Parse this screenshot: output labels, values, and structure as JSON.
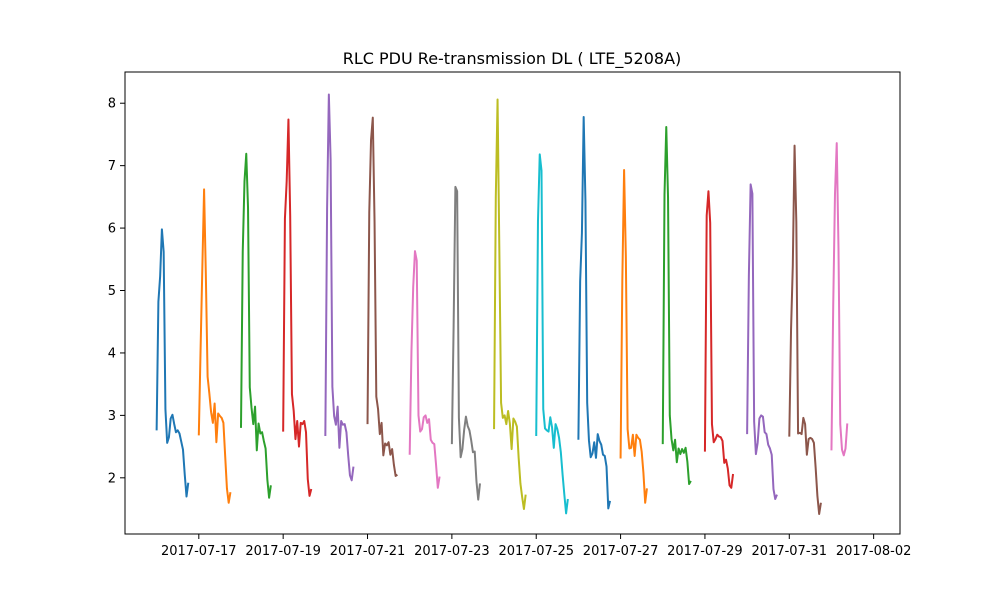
{
  "chart_data": {
    "type": "line",
    "title": "RLC PDU Re-transmission DL ( LTE_5208A)",
    "xlabel": "",
    "ylabel": "",
    "x_ticks": [
      "2017-07-17",
      "2017-07-19",
      "2017-07-21",
      "2017-07-23",
      "2017-07-25",
      "2017-07-27",
      "2017-07-29",
      "2017-07-31",
      "2017-08-02"
    ],
    "y_ticks": [
      "2",
      "3",
      "4",
      "5",
      "6",
      "7",
      "8"
    ],
    "xlim": [
      "2017-07-15 06:00",
      "2017-08-02 15:00"
    ],
    "ylim": [
      1.1,
      8.5
    ],
    "grid": false,
    "legend": "none",
    "colors": [
      "#1f77b4",
      "#ff7f0e",
      "#2ca02c",
      "#d62728",
      "#9467bd",
      "#8c564b",
      "#e377c2",
      "#7f7f7f",
      "#bcbd22",
      "#17becf"
    ],
    "series": [
      {
        "day": "2017-07-16",
        "hours": [
          0,
          1,
          2,
          3,
          4,
          5,
          6,
          7,
          8,
          9,
          10,
          11,
          12,
          13,
          14,
          15,
          16,
          17,
          18,
          19,
          20,
          21,
          22,
          23
        ],
        "values": [
          2.76,
          4.82,
          5.23,
          5.98,
          5.62,
          3.1,
          2.56,
          2.65,
          2.95,
          3.01,
          2.86,
          2.73,
          2.76,
          2.71,
          2.58,
          2.45,
          2.05,
          1.7,
          1.92,
          null,
          null,
          null,
          null,
          null
        ]
      },
      {
        "day": "2017-07-17",
        "hours": [
          0,
          1,
          2,
          3,
          4,
          5,
          6,
          7,
          8,
          9,
          10,
          11,
          12,
          13,
          14,
          15,
          16,
          17,
          18,
          19,
          20,
          21,
          22,
          23
        ],
        "values": [
          2.68,
          4.05,
          5.35,
          6.62,
          5.25,
          3.62,
          3.35,
          3.05,
          2.88,
          3.19,
          2.57,
          3.03,
          2.99,
          2.96,
          2.88,
          2.35,
          1.83,
          1.6,
          1.77,
          null,
          null,
          null,
          null,
          null
        ]
      },
      {
        "day": "2017-07-18",
        "hours": [
          0,
          1,
          2,
          3,
          4,
          5,
          6,
          7,
          8,
          9,
          10,
          11,
          12,
          13,
          14,
          15,
          16,
          17,
          18,
          19,
          20,
          21,
          22,
          23
        ],
        "values": [
          2.8,
          5.62,
          6.75,
          7.19,
          6.33,
          3.45,
          3.12,
          2.86,
          3.14,
          2.44,
          2.87,
          2.71,
          2.73,
          2.59,
          2.47,
          1.97,
          1.68,
          1.88,
          null,
          null,
          null,
          null,
          null,
          null
        ]
      },
      {
        "day": "2017-07-19",
        "hours": [
          0,
          1,
          2,
          3,
          4,
          5,
          6,
          7,
          8,
          9,
          10,
          11,
          12,
          13,
          14,
          15,
          16,
          17,
          18,
          19,
          20,
          21,
          22,
          23
        ],
        "values": [
          2.74,
          6.15,
          6.75,
          7.74,
          6.2,
          3.34,
          3.07,
          2.62,
          2.91,
          2.5,
          2.88,
          2.86,
          2.91,
          2.73,
          1.98,
          1.71,
          1.82,
          null,
          null,
          null,
          null,
          null,
          null,
          null
        ]
      },
      {
        "day": "2017-07-20",
        "hours": [
          0,
          1,
          2,
          3,
          4,
          5,
          6,
          7,
          8,
          9,
          10,
          11,
          12,
          13,
          14,
          15,
          16,
          17,
          18,
          19,
          20,
          21,
          22,
          23
        ],
        "values": [
          2.67,
          6.32,
          8.14,
          7.1,
          3.46,
          2.99,
          2.85,
          3.14,
          2.48,
          2.91,
          2.85,
          2.86,
          2.73,
          2.36,
          2.04,
          1.96,
          2.18,
          null,
          null,
          null,
          null,
          null,
          null,
          null
        ]
      },
      {
        "day": "2017-07-21",
        "hours": [
          0,
          1,
          2,
          3,
          4,
          5,
          6,
          7,
          8,
          9,
          10,
          11,
          12,
          13,
          14,
          15,
          16,
          17,
          18,
          19,
          20,
          21,
          22,
          23
        ],
        "values": [
          2.86,
          6.25,
          7.41,
          7.77,
          6.1,
          3.3,
          3.1,
          2.7,
          2.88,
          2.36,
          2.55,
          2.52,
          2.57,
          2.37,
          2.46,
          2.21,
          2.03,
          2.05,
          null,
          null,
          null,
          null,
          null,
          null
        ]
      },
      {
        "day": "2017-07-22",
        "hours": [
          0,
          1,
          2,
          3,
          4,
          5,
          6,
          7,
          8,
          9,
          10,
          11,
          12,
          13,
          14,
          15,
          16,
          17,
          18,
          19,
          20,
          21,
          22,
          23
        ],
        "values": [
          2.37,
          4.02,
          5.06,
          5.63,
          5.48,
          3.0,
          2.74,
          2.78,
          2.97,
          3.0,
          2.88,
          2.94,
          2.61,
          2.56,
          2.54,
          2.21,
          1.84,
          2.02,
          null,
          null,
          null,
          null,
          null,
          null
        ]
      },
      {
        "day": "2017-07-23",
        "hours": [
          0,
          1,
          2,
          3,
          4,
          5,
          6,
          7,
          8,
          9,
          10,
          11,
          12,
          13,
          14,
          15,
          16,
          17,
          18,
          19,
          20,
          21,
          22,
          23
        ],
        "values": [
          2.54,
          4.44,
          6.66,
          6.59,
          2.96,
          2.33,
          2.46,
          2.77,
          2.98,
          2.83,
          2.76,
          2.6,
          2.41,
          2.42,
          1.94,
          1.65,
          1.91,
          null,
          null,
          null,
          null,
          null,
          null,
          null
        ]
      },
      {
        "day": "2017-07-24",
        "hours": [
          0,
          1,
          2,
          3,
          4,
          5,
          6,
          7,
          8,
          9,
          10,
          11,
          12,
          13,
          14,
          15,
          16,
          17,
          18,
          19,
          20,
          21,
          22,
          23
        ],
        "values": [
          2.78,
          6.5,
          8.06,
          5.68,
          3.2,
          2.96,
          3.0,
          2.86,
          3.07,
          2.87,
          2.46,
          2.95,
          2.9,
          2.82,
          2.32,
          1.91,
          1.69,
          1.5,
          1.73,
          null,
          null,
          null,
          null,
          null
        ]
      },
      {
        "day": "2017-07-25",
        "hours": [
          0,
          1,
          2,
          3,
          4,
          5,
          6,
          7,
          8,
          9,
          10,
          11,
          12,
          13,
          14,
          15,
          16,
          17,
          18,
          19,
          20,
          21,
          22,
          23
        ],
        "values": [
          2.67,
          6.11,
          7.18,
          6.92,
          3.1,
          2.79,
          2.76,
          2.74,
          2.97,
          2.81,
          2.48,
          2.86,
          2.78,
          2.64,
          2.41,
          2.05,
          1.73,
          1.43,
          1.66,
          null,
          null,
          null,
          null,
          null
        ]
      },
      {
        "day": "2017-07-26",
        "hours": [
          0,
          1,
          2,
          3,
          4,
          5,
          6,
          7,
          8,
          9,
          10,
          11,
          12,
          13,
          14,
          15,
          16,
          17,
          18,
          19,
          20,
          21,
          22,
          23
        ],
        "values": [
          2.61,
          5.15,
          5.92,
          7.78,
          6.44,
          3.2,
          2.6,
          2.33,
          2.39,
          2.57,
          2.32,
          2.7,
          2.59,
          2.53,
          2.37,
          2.35,
          2.18,
          1.51,
          1.63,
          null,
          null,
          null,
          null,
          null
        ]
      },
      {
        "day": "2017-07-27",
        "hours": [
          0,
          1,
          2,
          3,
          4,
          5,
          6,
          7,
          8,
          9,
          10,
          11,
          12,
          13,
          14,
          15,
          16,
          17,
          18,
          19,
          20,
          21,
          22,
          23
        ],
        "values": [
          2.31,
          5.18,
          6.93,
          5.54,
          2.78,
          2.47,
          2.48,
          2.69,
          2.35,
          2.69,
          2.64,
          2.61,
          2.42,
          2.08,
          1.6,
          1.83,
          null,
          null,
          null,
          null,
          null,
          null,
          null,
          null
        ]
      },
      {
        "day": "2017-07-28",
        "hours": [
          0,
          1,
          2,
          3,
          4,
          5,
          6,
          7,
          8,
          9,
          10,
          11,
          12,
          13,
          14,
          15,
          16,
          17,
          18,
          19,
          20,
          21,
          22,
          23
        ],
        "values": [
          2.54,
          6.54,
          7.62,
          6.49,
          3.0,
          2.62,
          2.44,
          2.61,
          2.25,
          2.47,
          2.38,
          2.46,
          2.4,
          2.48,
          2.26,
          1.9,
          1.95,
          null,
          null,
          null,
          null,
          null,
          null,
          null
        ]
      },
      {
        "day": "2017-07-29",
        "hours": [
          0,
          1,
          2,
          3,
          4,
          5,
          6,
          7,
          8,
          9,
          10,
          11,
          12,
          13,
          14,
          15,
          16,
          17,
          18,
          19,
          20,
          21,
          22,
          23
        ],
        "values": [
          2.42,
          6.2,
          6.59,
          6.08,
          2.86,
          2.57,
          2.62,
          2.69,
          2.66,
          2.65,
          2.59,
          2.24,
          2.29,
          2.15,
          1.88,
          1.84,
          2.06,
          null,
          null,
          null,
          null,
          null,
          null,
          null
        ]
      },
      {
        "day": "2017-07-30",
        "hours": [
          0,
          1,
          2,
          3,
          4,
          5,
          6,
          7,
          8,
          9,
          10,
          11,
          12,
          13,
          14,
          15,
          16,
          17,
          18,
          19,
          20,
          21,
          22,
          23
        ],
        "values": [
          2.7,
          5.24,
          6.7,
          6.55,
          2.9,
          2.38,
          2.56,
          2.95,
          3.0,
          2.98,
          2.73,
          2.7,
          2.53,
          2.47,
          2.37,
          1.82,
          1.66,
          1.73,
          null,
          null,
          null,
          null,
          null,
          null
        ]
      },
      {
        "day": "2017-07-31",
        "hours": [
          0,
          1,
          2,
          3,
          4,
          5,
          6,
          7,
          8,
          9,
          10,
          11,
          12,
          13,
          14,
          15,
          16,
          17,
          18,
          19,
          20,
          21,
          22,
          23
        ],
        "values": [
          2.66,
          4.37,
          5.4,
          7.32,
          6.1,
          2.71,
          2.72,
          2.7,
          2.96,
          2.86,
          2.37,
          2.62,
          2.64,
          2.62,
          2.56,
          2.16,
          1.71,
          1.42,
          1.6,
          null,
          null,
          null,
          null,
          null
        ]
      },
      {
        "day": "2017-08-01",
        "hours": [
          0,
          1,
          2,
          3,
          4,
          5,
          6,
          7,
          8,
          9,
          10,
          11,
          12,
          13,
          14,
          15,
          16,
          17,
          18,
          19,
          20,
          21,
          22,
          23
        ],
        "values": [
          2.44,
          4.76,
          6.54,
          7.36,
          5.68,
          2.86,
          2.45,
          2.36,
          2.47,
          2.87,
          null,
          null,
          null,
          null,
          null,
          null,
          null,
          null,
          null,
          null,
          null,
          null,
          null,
          null
        ]
      }
    ]
  }
}
